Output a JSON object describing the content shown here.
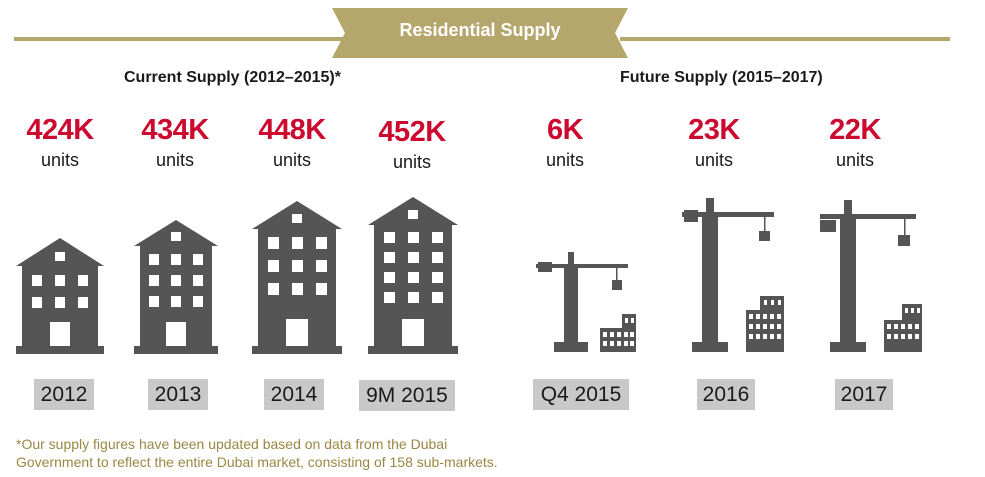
{
  "banner": {
    "title": "Residential Supply"
  },
  "sections": {
    "current": {
      "title": "Current Supply (2012–2015)*"
    },
    "future": {
      "title": "Future Supply (2015–2017)"
    }
  },
  "colors": {
    "accent": "#b5a66b",
    "value": "#cc0a2f",
    "icon": "#555555",
    "label_box": "#c8c8c8"
  },
  "chart_data": {
    "type": "pictograph",
    "unit": "units",
    "groups": [
      {
        "name": "Current Supply (2012–2015)*",
        "icon": "building-icon",
        "items": [
          {
            "period": "2012",
            "value_label": "424K",
            "value": 424000
          },
          {
            "period": "2013",
            "value_label": "434K",
            "value": 434000
          },
          {
            "period": "2014",
            "value_label": "448K",
            "value": 448000
          },
          {
            "period": "9M 2015",
            "value_label": "452K",
            "value": 452000
          }
        ]
      },
      {
        "name": "Future Supply (2015–2017)",
        "icon": "crane-icon",
        "items": [
          {
            "period": "Q4 2015",
            "value_label": "6K",
            "value": 6000
          },
          {
            "period": "2016",
            "value_label": "23K",
            "value": 23000
          },
          {
            "period": "2017",
            "value_label": "22K",
            "value": 22000
          }
        ]
      }
    ]
  },
  "footnote": {
    "line1": "*Our supply figures have been updated based on data from the Dubai",
    "line2": "Government to reflect the entire Dubai market, consisting of 158 sub-markets."
  }
}
